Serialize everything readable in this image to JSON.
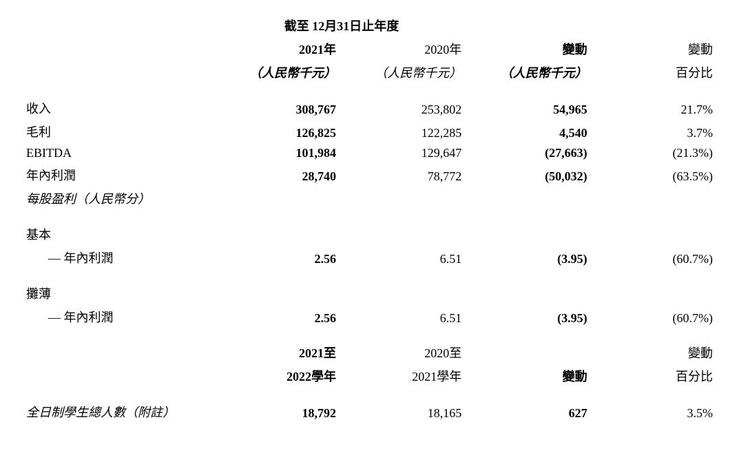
{
  "header": {
    "period_title": "截至 12月31日止年度",
    "col1_year": "2021年",
    "col2_year": "2020年",
    "col3_label": "變動",
    "col4_label": "變動",
    "col1_unit": "（人民幣千元）",
    "col2_unit": "（人民幣千元）",
    "col3_unit": "（人民幣千元）",
    "col4_unit": "百分比"
  },
  "rows": {
    "revenue": {
      "label": "收入",
      "c1": "308,767",
      "c2": "253,802",
      "c3": "54,965",
      "c4": "21.7%"
    },
    "gross_profit": {
      "label": "毛利",
      "c1": "126,825",
      "c2": "122,285",
      "c3": "4,540",
      "c4": "3.7%"
    },
    "ebitda": {
      "label": "EBITDA",
      "c1": "101,984",
      "c2": "129,647",
      "c3": "(27,663)",
      "c4": "(21.3%)"
    },
    "year_profit": {
      "label": "年內利潤",
      "c1": "28,740",
      "c2": "78,772",
      "c3": "(50,032)",
      "c4": "(63.5%)"
    },
    "eps_header": {
      "label": "每股盈利（人民幣分）"
    },
    "basic_header": {
      "label": "基本"
    },
    "basic_profit": {
      "label": "— 年內利潤",
      "c1": "2.56",
      "c2": "6.51",
      "c3": "(3.95)",
      "c4": "(60.7%)"
    },
    "diluted_header": {
      "label": "攤薄"
    },
    "diluted_profit": {
      "label": "— 年內利潤",
      "c1": "2.56",
      "c2": "6.51",
      "c3": "(3.95)",
      "c4": "(60.7%)"
    }
  },
  "header2": {
    "col1_line1": "2021至",
    "col1_line2": "2022學年",
    "col2_line1": "2020至",
    "col2_line2": "2021學年",
    "col3_label": "變動",
    "col4_line1": "變動",
    "col4_line2": "百分比"
  },
  "rows2": {
    "students": {
      "label": "全日制學生總人數（附註）",
      "c1": "18,792",
      "c2": "18,165",
      "c3": "627",
      "c4": "3.5%"
    }
  }
}
